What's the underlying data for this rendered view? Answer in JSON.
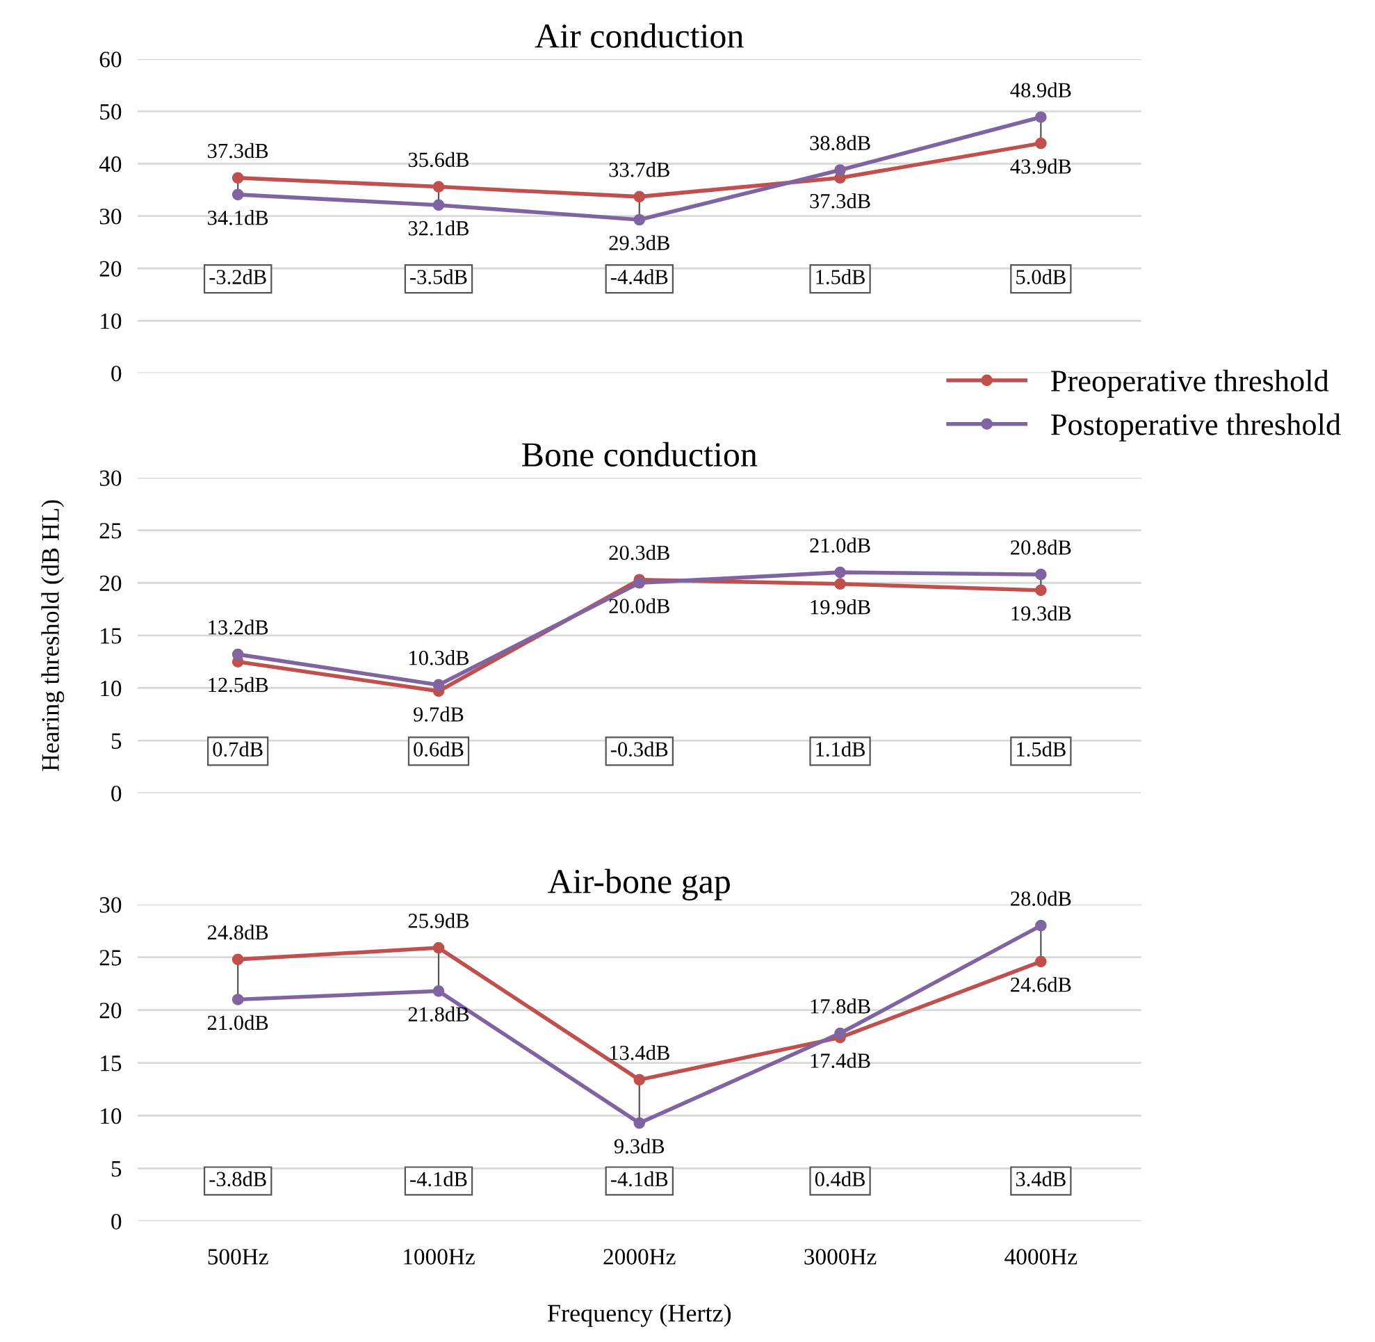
{
  "chart_data": [
    {
      "type": "line",
      "title": "Air conduction",
      "categories": [
        null,
        null,
        null,
        null,
        null
      ],
      "ylim": [
        0,
        60
      ],
      "yticks": [
        0,
        10,
        20,
        30,
        40,
        50,
        60
      ],
      "grid": "y",
      "tick_labels": "y",
      "marker": "circle",
      "line_style": "solid",
      "legend": "bottom right",
      "series": [
        {
          "name": "Preoperative threshold",
          "color": "#c0504d",
          "values": [
            37.3,
            35.6,
            33.7,
            37.3,
            43.9
          ],
          "value_labels": [
            "37.3dB",
            "35.6dB",
            "33.7dB",
            "37.3dB",
            "43.9dB"
          ]
        },
        {
          "name": "Postoperative threshold",
          "color": "#8064a2",
          "values": [
            34.1,
            32.1,
            29.3,
            38.8,
            48.9
          ],
          "value_labels": [
            "34.1dB",
            "32.1dB",
            "29.3dB",
            "38.8dB",
            "48.9dB"
          ]
        }
      ],
      "annotations": [
        "-3.2dB",
        "-3.5dB",
        "-4.4dB",
        "1.5dB",
        "5.0dB"
      ]
    },
    {
      "type": "line",
      "title": "Bone conduction",
      "ylabel": "Hearing threshold (dB HL)",
      "categories": [
        null,
        null,
        null,
        null,
        null
      ],
      "ylim": [
        0,
        30
      ],
      "yticks": [
        0,
        5,
        10,
        15,
        20,
        25,
        30
      ],
      "grid": "y",
      "tick_labels": "y",
      "marker": "circle",
      "line_style": "solid",
      "series": [
        {
          "color": "#c0504d",
          "values": [
            12.5,
            9.7,
            20.3,
            19.9,
            19.3
          ],
          "value_labels": [
            "12.5dB",
            "9.7dB",
            "20.3dB",
            "19.9dB",
            "19.3dB"
          ]
        },
        {
          "color": "#8064a2",
          "values": [
            13.2,
            10.3,
            20.0,
            21.0,
            20.8
          ],
          "value_labels": [
            "13.2dB",
            "10.3dB",
            "20.0dB",
            "21.0dB",
            "20.8dB"
          ]
        }
      ],
      "annotations": [
        "0.7dB",
        "0.6dB",
        "-0.3dB",
        "1.1dB",
        "1.5dB"
      ]
    },
    {
      "type": "line",
      "title": "Air-bone gap",
      "xlabel": "Frequency (Hertz)",
      "categories": [
        "500Hz",
        "1000Hz",
        "2000Hz",
        "3000Hz",
        "4000Hz"
      ],
      "ylim": [
        0,
        30
      ],
      "yticks": [
        0,
        5,
        10,
        15,
        20,
        25,
        30
      ],
      "grid": "y",
      "marker": "circle",
      "line_style": "solid",
      "series": [
        {
          "color": "#c0504d",
          "values": [
            24.8,
            25.9,
            13.4,
            17.4,
            24.6
          ],
          "value_labels": [
            "24.8dB",
            "25.9dB",
            "13.4dB",
            "17.4dB",
            "24.6dB"
          ]
        },
        {
          "color": "#8064a2",
          "values": [
            21.0,
            21.8,
            9.3,
            17.8,
            28.0
          ],
          "value_labels": [
            "21.0dB",
            "21.8dB",
            "9.3dB",
            "17.8dB",
            "28.0dB"
          ]
        }
      ],
      "annotations": [
        "-3.8dB",
        "-4.1dB",
        "-4.1dB",
        "0.4dB",
        "3.4dB"
      ]
    }
  ]
}
